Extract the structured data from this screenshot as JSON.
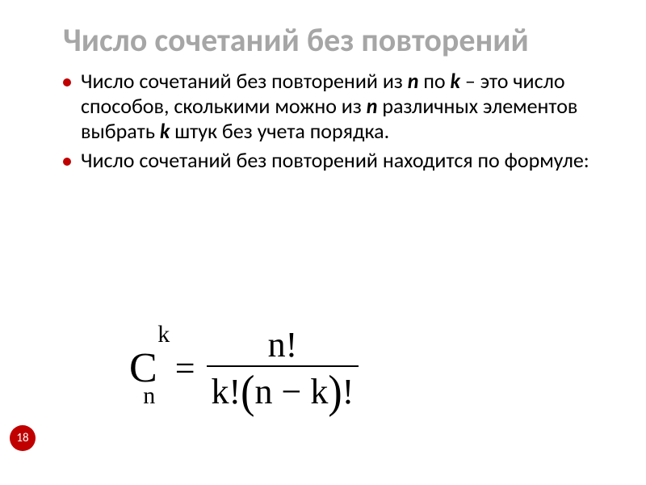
{
  "title": "Число сочетаний без повторений",
  "bullets": [
    {
      "segments": [
        {
          "t": "Число сочетаний без повторений из "
        },
        {
          "t": "n",
          "em": true
        },
        {
          "t": " по "
        },
        {
          "t": "k",
          "em": true
        },
        {
          "t": " – это число способов, сколькими можно из "
        },
        {
          "t": "n",
          "em": true
        },
        {
          "t": " различных элементов выбрать "
        },
        {
          "t": "k",
          "em": true
        },
        {
          "t": " штук без учета порядка."
        }
      ]
    },
    {
      "segments": [
        {
          "t": "Число сочетаний без повторений находится по формуле:"
        }
      ]
    }
  ],
  "formula": {
    "C": "C",
    "sup": "k",
    "sub": "n",
    "eq": "=",
    "num": "n!",
    "den_lead": "k!",
    "den_inner": "n − k",
    "den_trail": "!"
  },
  "page_number": "18",
  "colors": {
    "title": "#a6a6a6",
    "accent": "#c00000",
    "text": "#000000",
    "bg": "#ffffff"
  },
  "fonts": {
    "body": "Calibri",
    "math": "Times New Roman",
    "title_size_pt": 30,
    "body_size_pt": 20,
    "formula_size_pt": 33
  }
}
